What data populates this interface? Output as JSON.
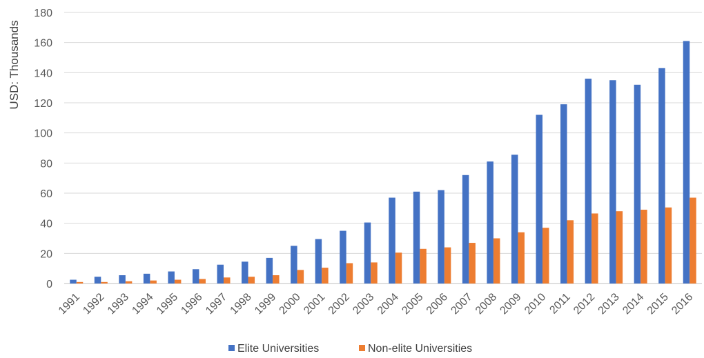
{
  "chart_data": {
    "type": "bar",
    "title": "",
    "xlabel": "",
    "ylabel": "USD: Thousands",
    "ylim": [
      0,
      180
    ],
    "yticks": [
      0,
      20,
      40,
      60,
      80,
      100,
      120,
      140,
      160,
      180
    ],
    "grid": true,
    "legend_position": "bottom",
    "categories": [
      "1991",
      "1992",
      "1993",
      "1994",
      "1995",
      "1996",
      "1997",
      "1998",
      "1999",
      "2000",
      "2001",
      "2002",
      "2003",
      "2004",
      "2005",
      "2006",
      "2007",
      "2008",
      "2009",
      "2010",
      "2011",
      "2012",
      "2013",
      "2014",
      "2015",
      "2016"
    ],
    "series": [
      {
        "name": "Elite Universities",
        "color": "#4472c4",
        "values": [
          2.5,
          4.5,
          5.5,
          6.5,
          8,
          9.5,
          12.5,
          14.5,
          17,
          25,
          29.5,
          35,
          40.5,
          57,
          61,
          62,
          72,
          81,
          85.5,
          112,
          119,
          136,
          135,
          132,
          143,
          161
        ]
      },
      {
        "name": "Non-elite Universities",
        "color": "#ed7d31",
        "values": [
          1,
          1,
          1.5,
          2,
          2.5,
          3,
          4,
          4.5,
          5.5,
          9,
          10.5,
          13.5,
          14,
          20.5,
          23,
          24,
          27,
          30,
          34,
          37,
          42,
          46.5,
          48,
          49,
          50.5,
          57
        ]
      }
    ]
  }
}
